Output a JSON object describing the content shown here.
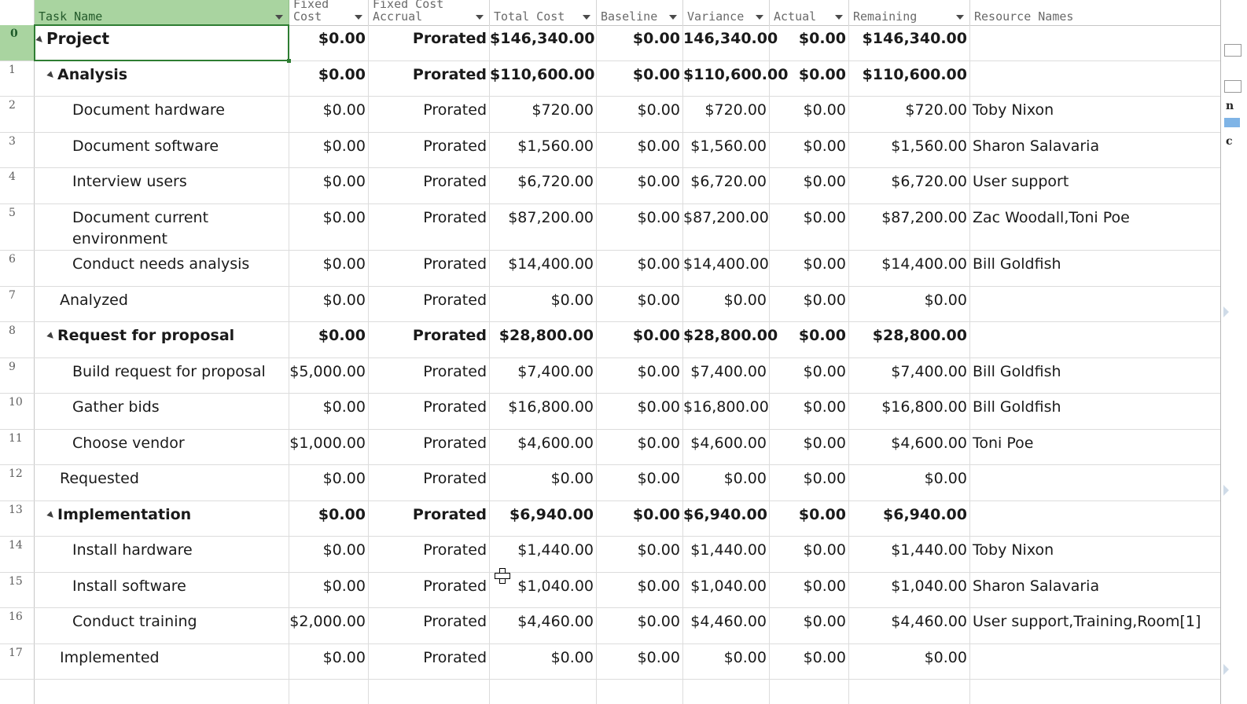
{
  "columns": {
    "rownum": "",
    "task_name": "Task Name",
    "fixed_cost": "Fixed\nCost",
    "fixed_cost_accrual": "Fixed Cost\nAccrual",
    "total_cost": "Total Cost",
    "baseline": "Baseline",
    "variance": "Variance",
    "actual": "Actual",
    "remaining": "Remaining",
    "resource_names": "Resource Names"
  },
  "rows": [
    {
      "id": "0",
      "name": "Project",
      "fixed_cost": "$0.00",
      "accrual": "Prorated",
      "total": "$146,340.00",
      "baseline": "$0.00",
      "variance": "146,340.00",
      "actual": "$0.00",
      "remaining": "$146,340.00",
      "resources": ""
    },
    {
      "id": "1",
      "name": "Analysis",
      "fixed_cost": "$0.00",
      "accrual": "Prorated",
      "total": "$110,600.00",
      "baseline": "$0.00",
      "variance": "$110,600.00",
      "actual": "$0.00",
      "remaining": "$110,600.00",
      "resources": ""
    },
    {
      "id": "2",
      "name": "Document hardware",
      "fixed_cost": "$0.00",
      "accrual": "Prorated",
      "total": "$720.00",
      "baseline": "$0.00",
      "variance": "$720.00",
      "actual": "$0.00",
      "remaining": "$720.00",
      "resources": "Toby Nixon"
    },
    {
      "id": "3",
      "name": "Document software",
      "fixed_cost": "$0.00",
      "accrual": "Prorated",
      "total": "$1,560.00",
      "baseline": "$0.00",
      "variance": "$1,560.00",
      "actual": "$0.00",
      "remaining": "$1,560.00",
      "resources": "Sharon Salavaria"
    },
    {
      "id": "4",
      "name": "Interview users",
      "fixed_cost": "$0.00",
      "accrual": "Prorated",
      "total": "$6,720.00",
      "baseline": "$0.00",
      "variance": "$6,720.00",
      "actual": "$0.00",
      "remaining": "$6,720.00",
      "resources": "User support"
    },
    {
      "id": "5",
      "name": "Document current environment",
      "fixed_cost": "$0.00",
      "accrual": "Prorated",
      "total": "$87,200.00",
      "baseline": "$0.00",
      "variance": "$87,200.00",
      "actual": "$0.00",
      "remaining": "$87,200.00",
      "resources": "Zac Woodall,Toni Poe"
    },
    {
      "id": "6",
      "name": "Conduct needs analysis",
      "fixed_cost": "$0.00",
      "accrual": "Prorated",
      "total": "$14,400.00",
      "baseline": "$0.00",
      "variance": "$14,400.00",
      "actual": "$0.00",
      "remaining": "$14,400.00",
      "resources": "Bill Goldfish"
    },
    {
      "id": "7",
      "name": "Analyzed",
      "fixed_cost": "$0.00",
      "accrual": "Prorated",
      "total": "$0.00",
      "baseline": "$0.00",
      "variance": "$0.00",
      "actual": "$0.00",
      "remaining": "$0.00",
      "resources": ""
    },
    {
      "id": "8",
      "name": "Request for proposal",
      "fixed_cost": "$0.00",
      "accrual": "Prorated",
      "total": "$28,800.00",
      "baseline": "$0.00",
      "variance": "$28,800.00",
      "actual": "$0.00",
      "remaining": "$28,800.00",
      "resources": ""
    },
    {
      "id": "9",
      "name": "Build request for proposal",
      "fixed_cost": "$5,000.00",
      "accrual": "Prorated",
      "total": "$7,400.00",
      "baseline": "$0.00",
      "variance": "$7,400.00",
      "actual": "$0.00",
      "remaining": "$7,400.00",
      "resources": "Bill Goldfish"
    },
    {
      "id": "10",
      "name": "Gather bids",
      "fixed_cost": "$0.00",
      "accrual": "Prorated",
      "total": "$16,800.00",
      "baseline": "$0.00",
      "variance": "$16,800.00",
      "actual": "$0.00",
      "remaining": "$16,800.00",
      "resources": "Bill Goldfish"
    },
    {
      "id": "11",
      "name": "Choose vendor",
      "fixed_cost": "$1,000.00",
      "accrual": "Prorated",
      "total": "$4,600.00",
      "baseline": "$0.00",
      "variance": "$4,600.00",
      "actual": "$0.00",
      "remaining": "$4,600.00",
      "resources": "Toni Poe"
    },
    {
      "id": "12",
      "name": "Requested",
      "fixed_cost": "$0.00",
      "accrual": "Prorated",
      "total": "$0.00",
      "baseline": "$0.00",
      "variance": "$0.00",
      "actual": "$0.00",
      "remaining": "$0.00",
      "resources": ""
    },
    {
      "id": "13",
      "name": "Implementation",
      "fixed_cost": "$0.00",
      "accrual": "Prorated",
      "total": "$6,940.00",
      "baseline": "$0.00",
      "variance": "$6,940.00",
      "actual": "$0.00",
      "remaining": "$6,940.00",
      "resources": ""
    },
    {
      "id": "14",
      "name": "Install hardware",
      "fixed_cost": "$0.00",
      "accrual": "Prorated",
      "total": "$1,440.00",
      "baseline": "$0.00",
      "variance": "$1,440.00",
      "actual": "$0.00",
      "remaining": "$1,440.00",
      "resources": "Toby Nixon"
    },
    {
      "id": "15",
      "name": "Install software",
      "fixed_cost": "$0.00",
      "accrual": "Prorated",
      "total": "$1,040.00",
      "baseline": "$0.00",
      "variance": "$1,040.00",
      "actual": "$0.00",
      "remaining": "$1,040.00",
      "resources": "Sharon Salavaria"
    },
    {
      "id": "16",
      "name": "Conduct training",
      "fixed_cost": "$2,000.00",
      "accrual": "Prorated",
      "total": "$4,460.00",
      "baseline": "$0.00",
      "variance": "$4,460.00",
      "actual": "$0.00",
      "remaining": "$4,460.00",
      "resources": "User support,Training,Room[1]"
    },
    {
      "id": "17",
      "name": "Implemented",
      "fixed_cost": "$0.00",
      "accrual": "Prorated",
      "total": "$0.00",
      "baseline": "$0.00",
      "variance": "$0.00",
      "actual": "$0.00",
      "remaining": "$0.00",
      "resources": ""
    }
  ],
  "right_pane": {
    "frag1": "n",
    "frag2": "c"
  },
  "colors": {
    "selected_header": "#a9d4a0",
    "selected_border": "#2e7d32"
  }
}
